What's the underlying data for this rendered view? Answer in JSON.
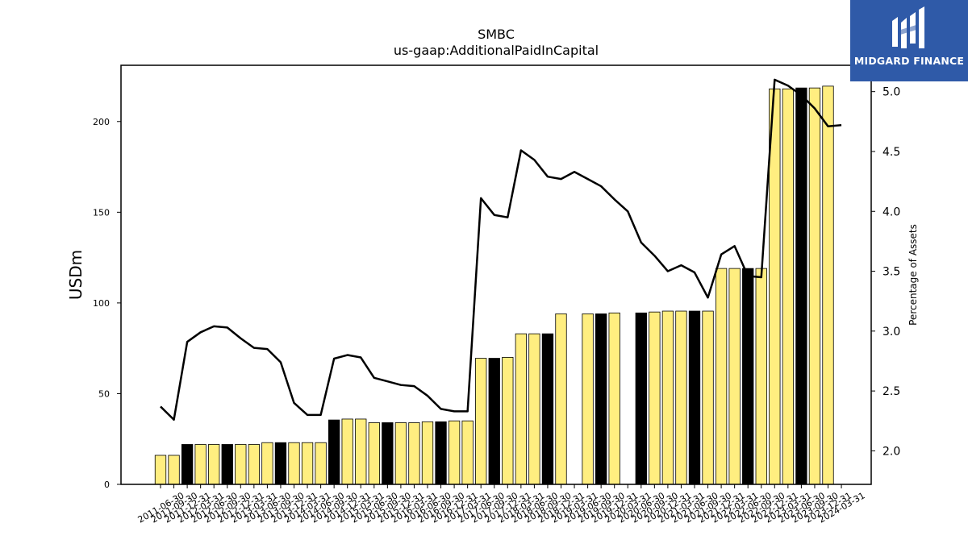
{
  "logo": {
    "text": "MIDGARD FINANCE",
    "icon": "mf-logo-icon"
  },
  "chart_data": {
    "type": "bar",
    "title": "SMBC",
    "subtitle": "us-gaap:AdditionalPaidInCapital",
    "ylabel": "USDm",
    "y2label": "Percentage of Assets",
    "ylim": [
      0,
      231
    ],
    "y2lim": [
      1.72,
      5.22
    ],
    "yticks": [
      0,
      50,
      100,
      150,
      200
    ],
    "y2ticks": [
      2.0,
      2.5,
      3.0,
      3.5,
      4.0,
      4.5,
      5.0
    ],
    "colors": {
      "bar_default": "#ffee80",
      "bar_highlight": "#000000",
      "line": "#000000"
    },
    "categories": [
      "2011-06-30",
      "2011-09-30",
      "2011-12-31",
      "2012-03-31",
      "2012-06-30",
      "2012-09-30",
      "2012-12-31",
      "2013-03-31",
      "2013-06-30",
      "2013-09-30",
      "2013-12-31",
      "2014-03-31",
      "2014-06-30",
      "2014-09-30",
      "2014-12-31",
      "2015-03-31",
      "2015-06-30",
      "2015-09-30",
      "2015-12-31",
      "2016-03-31",
      "2016-06-30",
      "2016-09-30",
      "2016-12-31",
      "2017-03-31",
      "2017-06-30",
      "2017-09-30",
      "2017-12-31",
      "2018-03-31",
      "2018-06-30",
      "2018-09-30",
      "2018-12-31",
      "2019-03-31",
      "2019-06-30",
      "2019-09-30",
      "2019-12-31",
      "2020-03-31",
      "2020-06-30",
      "2020-09-30",
      "2020-12-31",
      "2021-03-31",
      "2021-06-30",
      "2021-09-30",
      "2021-12-31",
      "2022-03-31",
      "2022-06-30",
      "2022-09-30",
      "2022-12-31",
      "2023-03-31",
      "2023-06-30",
      "2023-09-30",
      "2023-12-31",
      "2024-03-31"
    ],
    "series": [
      {
        "type": "bar",
        "values": [
          16,
          16,
          22,
          22,
          22,
          22,
          22,
          22,
          23,
          23,
          23,
          23,
          23,
          35.5,
          36,
          36,
          34,
          34,
          34,
          34,
          34.5,
          34.5,
          35,
          35,
          69.5,
          69.5,
          70,
          83,
          83,
          83,
          94,
          null,
          94,
          94,
          94.5,
          null,
          94.5,
          95,
          95.5,
          95.5,
          95.5,
          95.5,
          119,
          119,
          119,
          119,
          218,
          218,
          218.5,
          218.5,
          219.5,
          null
        ],
        "highlight": [
          false,
          false,
          true,
          false,
          false,
          true,
          false,
          false,
          false,
          true,
          false,
          false,
          false,
          true,
          false,
          false,
          false,
          true,
          false,
          false,
          false,
          true,
          false,
          false,
          false,
          true,
          false,
          false,
          false,
          true,
          false,
          false,
          false,
          true,
          false,
          false,
          true,
          false,
          false,
          false,
          true,
          false,
          false,
          false,
          true,
          false,
          false,
          false,
          true,
          false,
          false,
          false
        ]
      },
      {
        "type": "line",
        "axis": "right",
        "values": [
          2.37,
          2.26,
          2.91,
          2.99,
          3.04,
          3.03,
          2.94,
          2.86,
          2.85,
          2.74,
          2.4,
          2.3,
          2.3,
          2.77,
          2.8,
          2.78,
          2.61,
          2.58,
          2.55,
          2.54,
          2.46,
          2.35,
          2.33,
          2.33,
          4.11,
          3.97,
          3.95,
          4.51,
          4.43,
          4.29,
          4.27,
          4.33,
          4.27,
          4.21,
          4.1,
          4.0,
          3.74,
          3.63,
          3.5,
          3.55,
          3.49,
          3.28,
          3.64,
          3.71,
          3.46,
          3.45,
          5.1,
          5.05,
          4.97,
          4.86,
          4.71,
          4.72
        ]
      }
    ]
  }
}
